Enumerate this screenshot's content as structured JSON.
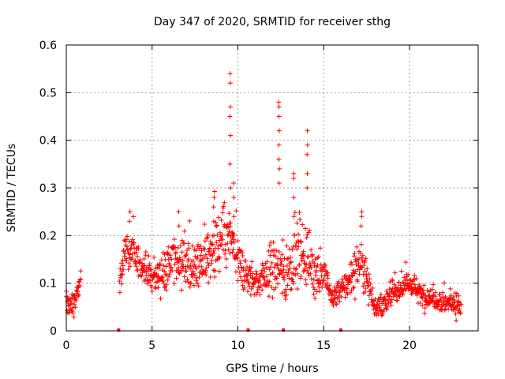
{
  "chart_data": {
    "type": "scatter",
    "title": "Day 347 of 2020, SRMTID for receiver sthg",
    "xlabel": "GPS time / hours",
    "ylabel": "SRMTID / TECUs",
    "xlim": [
      0,
      24
    ],
    "ylim": [
      0,
      0.6
    ],
    "xticks": [
      0,
      5,
      10,
      15,
      20
    ],
    "xtick_labels": [
      "0",
      "5",
      "10",
      "15",
      "20"
    ],
    "yticks": [
      0,
      0.1,
      0.2,
      0.3,
      0.4,
      0.5,
      0.6
    ],
    "ytick_labels": [
      "0",
      "0.1",
      "0.2",
      "0.3",
      "0.4",
      "0.5",
      "0.6"
    ],
    "grid": true,
    "marker": "plus",
    "color": "#ff0000",
    "baseline_markers": [
      3.05,
      10.6,
      12.65,
      16.0
    ],
    "profile": {
      "x": [
        0.0,
        0.3,
        0.6,
        0.85,
        3.1,
        3.5,
        3.7,
        4.1,
        4.6,
        5.0,
        5.5,
        6.0,
        6.5,
        7.0,
        7.5,
        8.0,
        8.6,
        9.2,
        9.55,
        9.9,
        10.3,
        10.7,
        11.2,
        11.7,
        12.1,
        12.4,
        12.8,
        13.2,
        13.6,
        14.1,
        14.6,
        15.1,
        15.5,
        15.9,
        16.4,
        16.9,
        17.2,
        17.6,
        18.0,
        18.5,
        19.0,
        19.5,
        20.0,
        20.5,
        21.0,
        21.5,
        22.0,
        22.5,
        23.0
      ],
      "center": [
        0.06,
        0.05,
        0.07,
        0.11,
        0.1,
        0.18,
        0.16,
        0.15,
        0.13,
        0.11,
        0.12,
        0.14,
        0.15,
        0.14,
        0.13,
        0.15,
        0.16,
        0.19,
        0.2,
        0.15,
        0.12,
        0.11,
        0.1,
        0.12,
        0.14,
        0.13,
        0.11,
        0.15,
        0.17,
        0.15,
        0.12,
        0.11,
        0.07,
        0.08,
        0.1,
        0.13,
        0.15,
        0.1,
        0.05,
        0.05,
        0.08,
        0.09,
        0.1,
        0.08,
        0.07,
        0.07,
        0.06,
        0.06,
        0.05
      ],
      "spread": [
        0.02,
        0.02,
        0.02,
        0.02,
        0.02,
        0.04,
        0.03,
        0.03,
        0.03,
        0.03,
        0.03,
        0.04,
        0.04,
        0.04,
        0.04,
        0.04,
        0.05,
        0.05,
        0.05,
        0.05,
        0.04,
        0.03,
        0.03,
        0.04,
        0.05,
        0.05,
        0.05,
        0.05,
        0.06,
        0.05,
        0.04,
        0.03,
        0.02,
        0.02,
        0.03,
        0.04,
        0.04,
        0.03,
        0.02,
        0.02,
        0.02,
        0.02,
        0.02,
        0.02,
        0.02,
        0.02,
        0.02,
        0.02,
        0.02
      ]
    },
    "point_density_per_hour": 58,
    "spikes": [
      {
        "x": 8.6,
        "values": [
          0.2,
          0.23,
          0.26,
          0.28
        ]
      },
      {
        "x": 9.55,
        "values": [
          0.3,
          0.35,
          0.41,
          0.45,
          0.47,
          0.52,
          0.54
        ]
      },
      {
        "x": 9.75,
        "values": [
          0.24,
          0.28,
          0.31
        ]
      },
      {
        "x": 12.4,
        "values": [
          0.31,
          0.34,
          0.36,
          0.39,
          0.42,
          0.45,
          0.47,
          0.48
        ]
      },
      {
        "x": 13.25,
        "values": [
          0.24,
          0.28,
          0.32,
          0.33
        ]
      },
      {
        "x": 14.05,
        "values": [
          0.3,
          0.33,
          0.37,
          0.39,
          0.42
        ]
      },
      {
        "x": 6.55,
        "values": [
          0.22,
          0.25
        ]
      },
      {
        "x": 3.7,
        "values": [
          0.23,
          0.25
        ]
      },
      {
        "x": 17.2,
        "values": [
          0.22,
          0.24,
          0.25
        ]
      }
    ]
  }
}
